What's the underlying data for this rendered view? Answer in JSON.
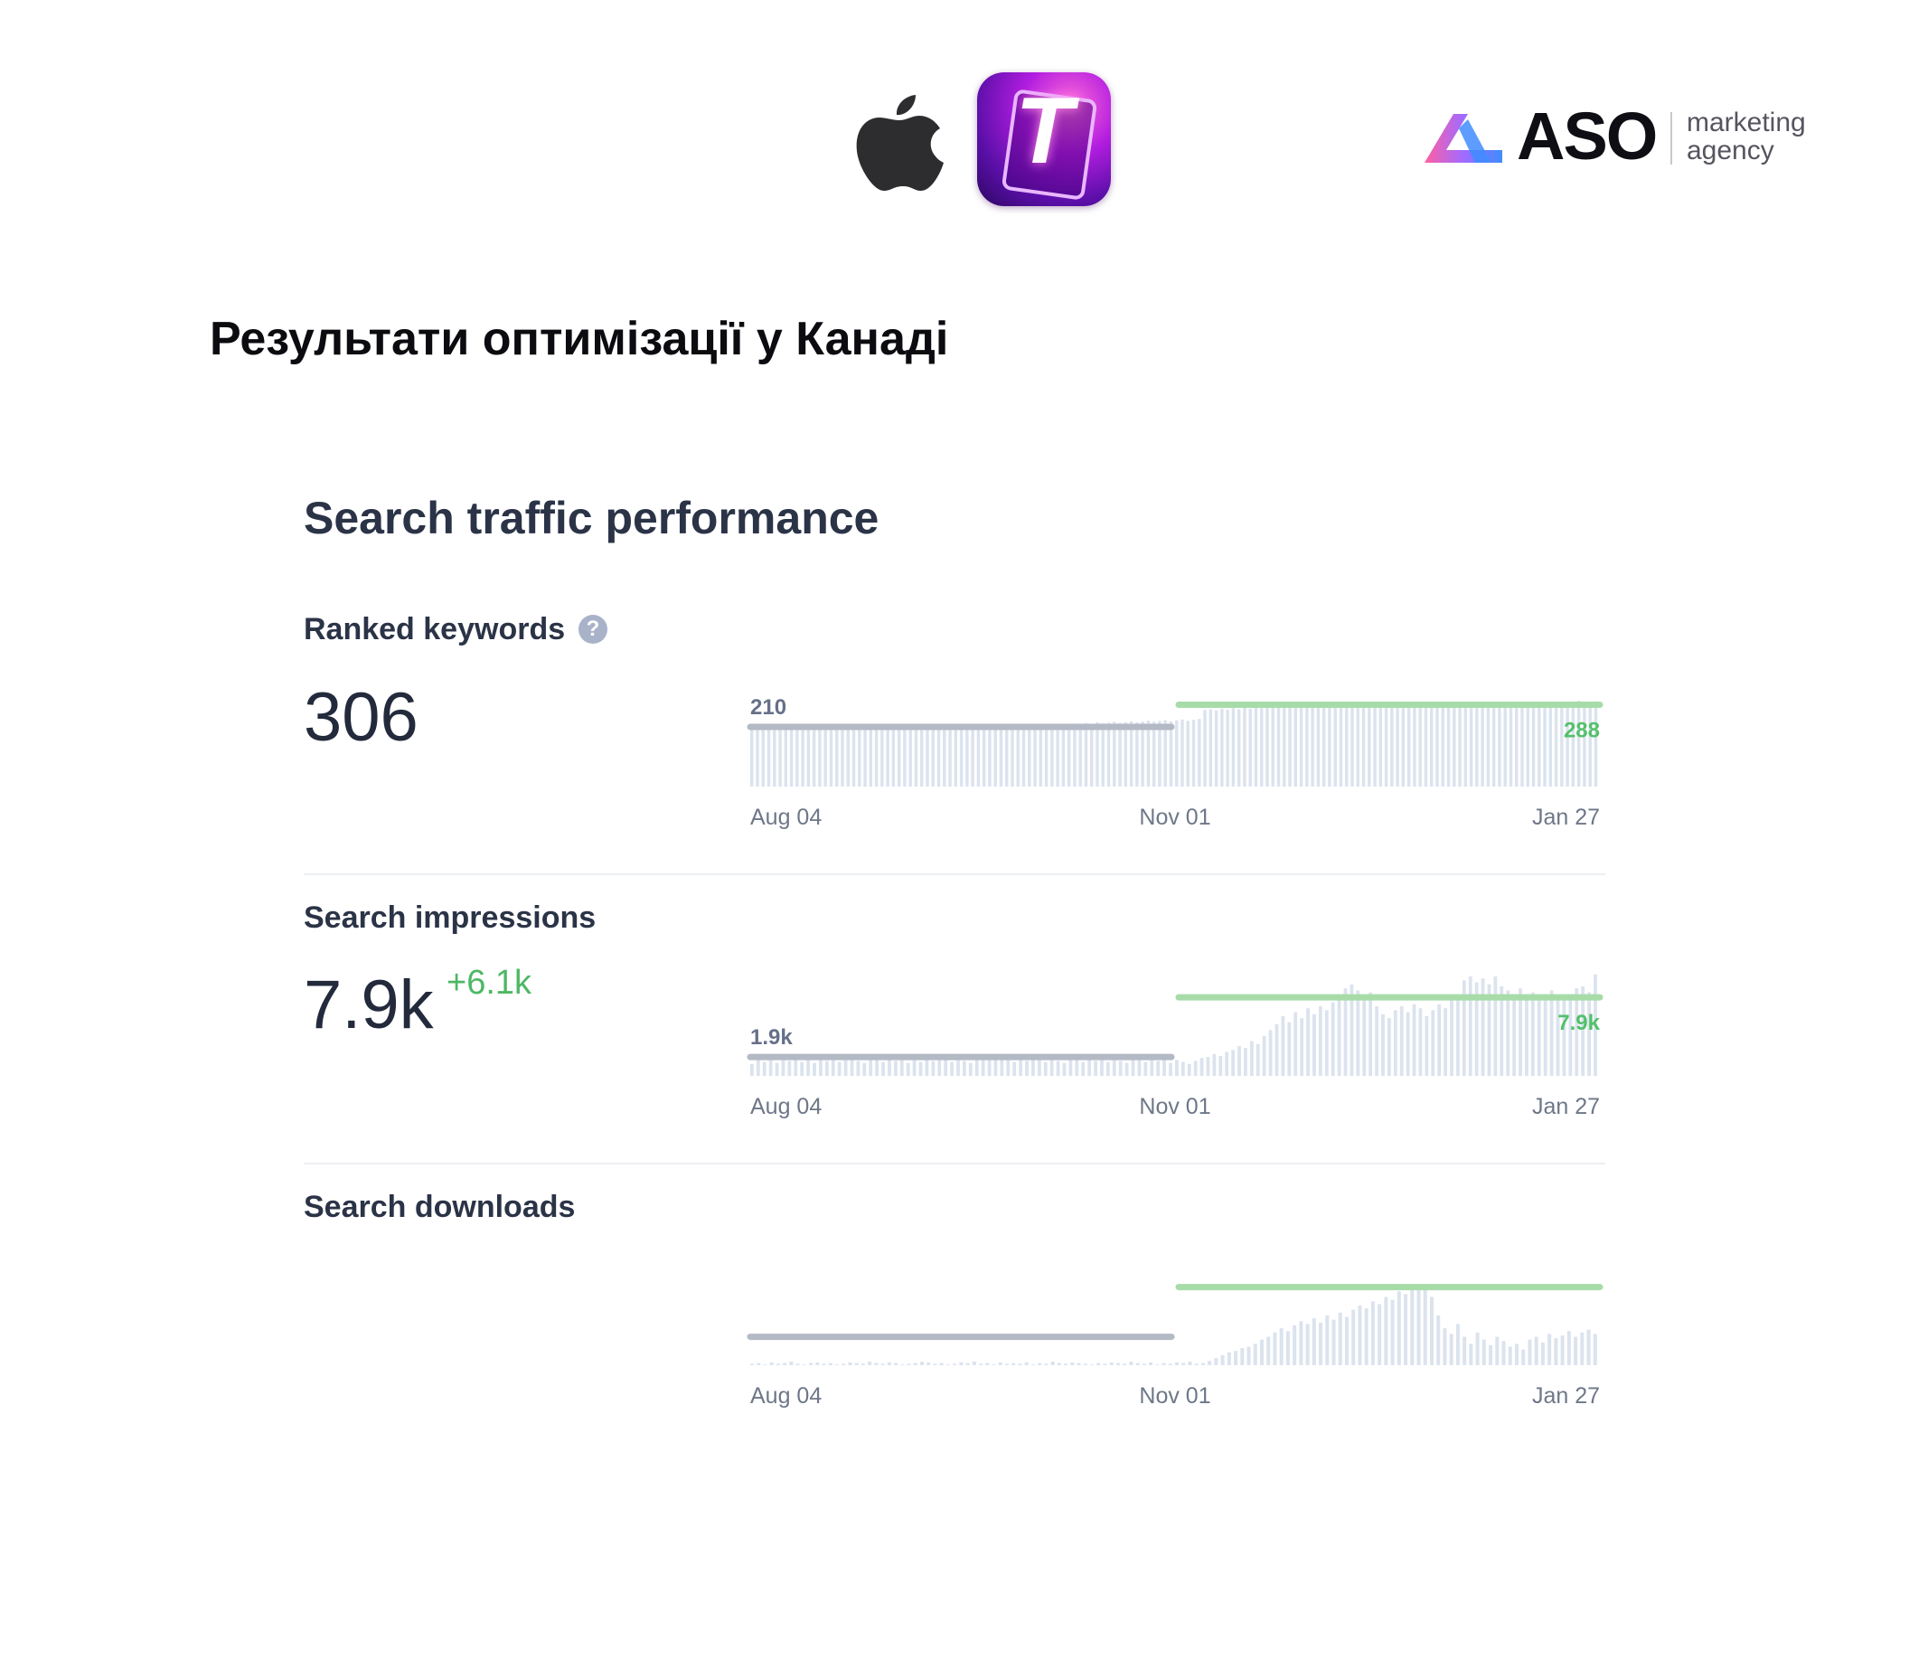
{
  "header": {
    "apple_icon": "apple-logo-icon",
    "app_icon_letter": "T",
    "brand": {
      "word": "ASO",
      "tagline_line1": "marketing",
      "tagline_line2": "agency"
    }
  },
  "page_title": "Результати оптимізації у Канаді",
  "section_title": "Search traffic performance",
  "colors": {
    "before": "#b3b9c5",
    "after": "#a7dca9",
    "bars": "#dbe3ee",
    "accent_green": "#4db865",
    "text_dark": "#232a3c"
  },
  "metrics": {
    "ranked_keywords": {
      "label": "Ranked keywords",
      "value": "306",
      "help_icon": "question-circle-icon"
    },
    "search_impressions": {
      "label": "Search impressions",
      "value": "7.9k",
      "delta": "+6.1k"
    },
    "search_downloads": {
      "label": "Search downloads"
    }
  },
  "chart_data": [
    {
      "type": "bar",
      "name": "Ranked keywords",
      "x_ticks": [
        "Aug 04",
        "Nov 01",
        "Jan 27"
      ],
      "before_avg": {
        "label": "210",
        "value": 210
      },
      "after_avg": {
        "label": "288",
        "value": 288
      },
      "ylim": [
        0,
        350
      ],
      "values": [
        205,
        210,
        208,
        212,
        206,
        209,
        211,
        207,
        210,
        204,
        212,
        208,
        206,
        211,
        209,
        205,
        213,
        207,
        210,
        208,
        206,
        212,
        209,
        211,
        207,
        205,
        210,
        208,
        212,
        206,
        209,
        211,
        207,
        214,
        208,
        206,
        210,
        212,
        205,
        209,
        211,
        207,
        213,
        208,
        206,
        212,
        209,
        211,
        207,
        210,
        216,
        214,
        212,
        218,
        215,
        220,
        217,
        222,
        219,
        224,
        221,
        226,
        223,
        225,
        228,
        224,
        227,
        230,
        226,
        229,
        232,
        228,
        231,
        234,
        230,
        233,
        236,
        231,
        235,
        238,
        270,
        272,
        268,
        274,
        270,
        276,
        272,
        278,
        274,
        280,
        276,
        282,
        278,
        284,
        280,
        290,
        292,
        288,
        294,
        290,
        296,
        292,
        298,
        294,
        296,
        292,
        295,
        298,
        294,
        290,
        288,
        292,
        296,
        290,
        286,
        282,
        288,
        292,
        294,
        296,
        292,
        290,
        288,
        286,
        284,
        282,
        286,
        290,
        292,
        294,
        296,
        298,
        294,
        292,
        290,
        288,
        292,
        294,
        296,
        298,
        300,
        296,
        294,
        292,
        298,
        300,
        302,
        298,
        296,
        300
      ]
    },
    {
      "type": "bar",
      "name": "Search impressions",
      "x_ticks": [
        "Aug 04",
        "Nov 01",
        "Jan 27"
      ],
      "before_avg": {
        "label": "1.9k",
        "value": 1.9
      },
      "after_avg": {
        "label": "7.9k",
        "value": 7.9
      },
      "ylim": [
        0,
        10
      ],
      "values": [
        1.2,
        1.6,
        1.4,
        1.8,
        1.3,
        1.7,
        1.5,
        1.9,
        1.4,
        1.6,
        1.3,
        1.8,
        1.5,
        1.7,
        1.4,
        1.6,
        1.9,
        1.5,
        1.3,
        1.7,
        1.6,
        1.4,
        1.8,
        1.5,
        1.7,
        1.3,
        1.6,
        1.4,
        1.9,
        1.5,
        1.7,
        1.6,
        1.4,
        1.8,
        1.5,
        1.3,
        1.7,
        1.6,
        1.9,
        2.1,
        1.8,
        1.6,
        1.4,
        1.7,
        1.5,
        1.8,
        1.6,
        1.4,
        1.7,
        1.5,
        1.3,
        1.6,
        1.8,
        1.4,
        1.7,
        1.5,
        1.6,
        1.4,
        1.8,
        1.5,
        1.3,
        1.7,
        1.6,
        1.4,
        1.8,
        1.5,
        1.7,
        1.3,
        1.6,
        1.4,
        1.2,
        1.5,
        1.8,
        1.9,
        2.2,
        2.0,
        2.4,
        2.6,
        3.0,
        2.8,
        3.5,
        3.2,
        4.0,
        4.6,
        5.2,
        6.0,
        5.4,
        6.4,
        5.8,
        6.8,
        6.2,
        7.0,
        6.6,
        7.4,
        8.2,
        8.8,
        9.2,
        8.6,
        7.8,
        8.4,
        7.0,
        6.2,
        5.8,
        6.6,
        7.0,
        6.4,
        7.2,
        6.8,
        6.0,
        6.6,
        7.2,
        6.8,
        7.6,
        8.0,
        9.6,
        10.0,
        9.4,
        9.8,
        9.2,
        10.0,
        9.0,
        8.6,
        8.2,
        8.8,
        8.0,
        8.4,
        7.8,
        8.2,
        8.6,
        8.0,
        7.6,
        8.2,
        8.8,
        9.0,
        8.4,
        10.2
      ]
    },
    {
      "type": "bar",
      "name": "Search downloads",
      "x_ticks": [
        "Aug 04",
        "Nov 01",
        "Jan 27"
      ],
      "before_avg": {
        "value": 0.4
      },
      "after_avg": {
        "value": 1.1
      },
      "ylim": [
        0,
        1.4
      ],
      "values": [
        0.02,
        0.03,
        0.01,
        0.04,
        0.02,
        0.03,
        0.05,
        0.02,
        0.01,
        0.03,
        0.04,
        0.02,
        0.03,
        0.01,
        0.02,
        0.04,
        0.03,
        0.02,
        0.05,
        0.03,
        0.02,
        0.04,
        0.03,
        0.01,
        0.02,
        0.03,
        0.05,
        0.04,
        0.02,
        0.03,
        0.01,
        0.02,
        0.04,
        0.03,
        0.05,
        0.02,
        0.03,
        0.01,
        0.04,
        0.02,
        0.03,
        0.02,
        0.04,
        0.01,
        0.03,
        0.02,
        0.05,
        0.03,
        0.02,
        0.04,
        0.03,
        0.02,
        0.01,
        0.03,
        0.02,
        0.04,
        0.03,
        0.02,
        0.05,
        0.03,
        0.02,
        0.04,
        0.01,
        0.03,
        0.02,
        0.04,
        0.03,
        0.05,
        0.02,
        0.03,
        0.06,
        0.1,
        0.14,
        0.18,
        0.2,
        0.24,
        0.26,
        0.3,
        0.36,
        0.4,
        0.46,
        0.52,
        0.48,
        0.56,
        0.62,
        0.58,
        0.66,
        0.6,
        0.7,
        0.64,
        0.74,
        0.68,
        0.78,
        0.84,
        0.8,
        0.9,
        0.86,
        0.96,
        0.92,
        1.04,
        1.0,
        1.1,
        1.14,
        1.08,
        0.96,
        0.7,
        0.52,
        0.44,
        0.58,
        0.4,
        0.3,
        0.46,
        0.36,
        0.28,
        0.4,
        0.34,
        0.26,
        0.3,
        0.22,
        0.36,
        0.4,
        0.32,
        0.44,
        0.38,
        0.42,
        0.48,
        0.4,
        0.46,
        0.5,
        0.44
      ]
    }
  ]
}
